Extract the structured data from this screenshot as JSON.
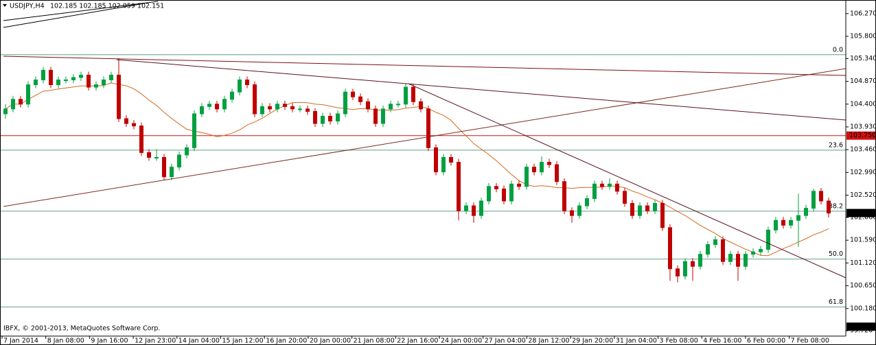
{
  "header": {
    "symbol": "USDJPY,H4",
    "quote": "102.185 102.185 102.059 102.151"
  },
  "footer": "IBFX, © 2001-2013, MetaQuotes Software Corp.",
  "chart_data": {
    "type": "candlestick",
    "categories": [
      "7 Jan 2014",
      "8 Jan 08:00",
      "9 Jan 16:00",
      "12 Jan 23:00",
      "14 Jan 04:00",
      "15 Jan 12:00",
      "16 Jan 20:00",
      "20 Jan 00:00",
      "21 Jan 08:00",
      "22 Jan 16:00",
      "24 Jan 00:00",
      "27 Jan 04:00",
      "28 Jan 12:00",
      "29 Jan 20:00",
      "31 Jan 04:00",
      "3 Feb 08:00",
      "4 Feb 16:00",
      "6 Feb 00:00",
      "7 Feb 08:00"
    ],
    "candles": [
      [
        104.2,
        104.4,
        104.1,
        104.3
      ],
      [
        104.3,
        104.57,
        104.23,
        104.5
      ],
      [
        104.5,
        104.57,
        104.33,
        104.4
      ],
      [
        104.4,
        104.87,
        104.33,
        104.8
      ],
      [
        104.8,
        104.97,
        104.73,
        104.9
      ],
      [
        104.9,
        105.17,
        104.83,
        105.1
      ],
      [
        105.1,
        105.17,
        104.73,
        104.8
      ],
      [
        104.8,
        104.97,
        104.73,
        104.9
      ],
      [
        104.9,
        104.97,
        104.83,
        104.9
      ],
      [
        104.9,
        105.02,
        104.83,
        104.95
      ],
      [
        104.95,
        105.07,
        104.88,
        105.0
      ],
      [
        105.0,
        105.07,
        104.68,
        104.75
      ],
      [
        104.75,
        104.87,
        104.68,
        104.8
      ],
      [
        104.8,
        104.97,
        104.73,
        104.9
      ],
      [
        104.9,
        105.07,
        104.83,
        105.0
      ],
      [
        105.0,
        105.35,
        104.03,
        104.1
      ],
      [
        104.1,
        104.17,
        103.93,
        104.0
      ],
      [
        104.0,
        104.07,
        103.88,
        103.95
      ],
      [
        103.95,
        104.02,
        103.33,
        103.4
      ],
      [
        103.4,
        103.47,
        103.23,
        103.3
      ],
      [
        103.3,
        103.47,
        103.23,
        103.3
      ],
      [
        103.3,
        103.37,
        102.83,
        102.9
      ],
      [
        102.9,
        103.17,
        102.83,
        103.1
      ],
      [
        103.1,
        103.42,
        103.03,
        103.35
      ],
      [
        103.35,
        103.57,
        103.28,
        103.5
      ],
      [
        103.5,
        104.27,
        103.43,
        104.2
      ],
      [
        104.2,
        104.42,
        104.13,
        104.35
      ],
      [
        104.35,
        104.47,
        104.28,
        104.4
      ],
      [
        104.4,
        104.47,
        104.23,
        104.3
      ],
      [
        104.3,
        104.57,
        104.23,
        104.5
      ],
      [
        104.5,
        104.72,
        104.43,
        104.65
      ],
      [
        104.65,
        104.97,
        104.58,
        104.9
      ],
      [
        104.9,
        104.97,
        104.73,
        104.8
      ],
      [
        104.8,
        104.87,
        104.13,
        104.2
      ],
      [
        104.2,
        104.42,
        104.13,
        104.35
      ],
      [
        104.35,
        104.42,
        104.23,
        104.3
      ],
      [
        104.3,
        104.47,
        104.23,
        104.4
      ],
      [
        104.4,
        104.47,
        104.28,
        104.35
      ],
      [
        104.35,
        104.42,
        104.23,
        104.3
      ],
      [
        104.3,
        104.37,
        104.23,
        104.3
      ],
      [
        104.3,
        104.37,
        104.18,
        104.25
      ],
      [
        104.25,
        104.32,
        103.93,
        104.0
      ],
      [
        104.0,
        104.22,
        103.93,
        104.15
      ],
      [
        104.15,
        104.22,
        103.98,
        104.05
      ],
      [
        104.05,
        104.27,
        103.98,
        104.2
      ],
      [
        104.2,
        104.72,
        104.13,
        104.65
      ],
      [
        104.65,
        104.72,
        104.48,
        104.55
      ],
      [
        104.55,
        104.62,
        104.38,
        104.45
      ],
      [
        104.45,
        104.52,
        104.23,
        104.3
      ],
      [
        104.3,
        104.37,
        103.93,
        104.0
      ],
      [
        104.0,
        104.37,
        103.93,
        104.3
      ],
      [
        104.3,
        104.47,
        104.23,
        104.4
      ],
      [
        104.4,
        104.47,
        104.33,
        104.4
      ],
      [
        104.4,
        104.82,
        104.33,
        104.75
      ],
      [
        104.75,
        104.82,
        104.38,
        104.45
      ],
      [
        104.45,
        104.52,
        104.23,
        104.3
      ],
      [
        104.3,
        104.37,
        103.43,
        103.5
      ],
      [
        103.5,
        103.57,
        102.93,
        103.0
      ],
      [
        103.0,
        103.37,
        102.93,
        103.3
      ],
      [
        103.3,
        103.37,
        103.13,
        103.2
      ],
      [
        103.2,
        103.27,
        102.0,
        102.2
      ],
      [
        102.2,
        102.37,
        102.13,
        102.3
      ],
      [
        102.3,
        102.37,
        101.95,
        102.1
      ],
      [
        102.1,
        102.47,
        102.03,
        102.4
      ],
      [
        102.4,
        102.77,
        102.33,
        102.7
      ],
      [
        102.7,
        102.77,
        102.58,
        102.65
      ],
      [
        102.65,
        102.72,
        102.33,
        102.4
      ],
      [
        102.4,
        102.82,
        102.33,
        102.75
      ],
      [
        102.75,
        102.82,
        102.63,
        102.7
      ],
      [
        102.7,
        103.17,
        102.63,
        103.1
      ],
      [
        103.1,
        103.17,
        102.93,
        103.0
      ],
      [
        103.0,
        103.32,
        102.93,
        103.2
      ],
      [
        103.2,
        103.27,
        103.08,
        103.15
      ],
      [
        103.15,
        103.22,
        102.73,
        102.8
      ],
      [
        102.8,
        102.87,
        102.13,
        102.2
      ],
      [
        102.2,
        102.27,
        101.95,
        102.1
      ],
      [
        102.1,
        102.37,
        102.03,
        102.3
      ],
      [
        102.3,
        102.52,
        102.23,
        102.45
      ],
      [
        102.45,
        102.82,
        102.38,
        102.75
      ],
      [
        102.75,
        102.82,
        102.63,
        102.7
      ],
      [
        102.7,
        102.87,
        102.63,
        102.75
      ],
      [
        102.75,
        102.82,
        102.53,
        102.6
      ],
      [
        102.6,
        102.67,
        102.28,
        102.35
      ],
      [
        102.35,
        102.42,
        102.03,
        102.1
      ],
      [
        102.1,
        102.37,
        102.03,
        102.3
      ],
      [
        102.3,
        102.37,
        102.13,
        102.2
      ],
      [
        102.2,
        102.42,
        102.13,
        102.35
      ],
      [
        102.35,
        102.42,
        101.78,
        101.85
      ],
      [
        101.85,
        101.92,
        100.75,
        101.0
      ],
      [
        101.0,
        101.07,
        100.72,
        100.85
      ],
      [
        100.85,
        101.22,
        100.78,
        101.15
      ],
      [
        101.15,
        101.22,
        100.75,
        101.05
      ],
      [
        101.05,
        101.37,
        100.98,
        101.3
      ],
      [
        101.3,
        101.57,
        101.23,
        101.5
      ],
      [
        101.5,
        101.67,
        101.43,
        101.6
      ],
      [
        101.6,
        101.67,
        101.08,
        101.15
      ],
      [
        101.15,
        101.37,
        101.08,
        101.3
      ],
      [
        101.3,
        101.37,
        100.75,
        101.05
      ],
      [
        101.05,
        101.37,
        100.98,
        101.3
      ],
      [
        101.3,
        101.42,
        101.23,
        101.35
      ],
      [
        101.35,
        101.47,
        101.28,
        101.4
      ],
      [
        101.4,
        101.87,
        101.33,
        101.8
      ],
      [
        101.8,
        102.07,
        101.73,
        102.0
      ],
      [
        102.0,
        102.07,
        101.83,
        101.9
      ],
      [
        101.9,
        102.07,
        101.83,
        102.0
      ],
      [
        102.0,
        102.55,
        101.45,
        102.1
      ],
      [
        102.1,
        102.32,
        102.03,
        102.25
      ],
      [
        102.25,
        102.65,
        102.18,
        102.6
      ],
      [
        102.6,
        102.67,
        102.33,
        102.4
      ],
      [
        102.4,
        102.47,
        102.06,
        102.15
      ]
    ],
    "ylim": [
      99.61,
      106.55
    ],
    "yticks": [
      {
        "value": 106.27,
        "label": "106.270"
      },
      {
        "value": 105.8,
        "label": "105.800"
      },
      {
        "value": 105.34,
        "label": "105.340"
      },
      {
        "value": 104.87,
        "label": "104.870"
      },
      {
        "value": 104.4,
        "label": "104.400"
      },
      {
        "value": 103.93,
        "label": "103.930"
      },
      {
        "value": 103.46,
        "label": "103.460"
      },
      {
        "value": 102.99,
        "label": "102.990"
      },
      {
        "value": 102.52,
        "label": "102.520"
      },
      {
        "value": 102.06,
        "label": "102.060"
      },
      {
        "value": 101.59,
        "label": "101.590"
      },
      {
        "value": 101.12,
        "label": "101.120"
      },
      {
        "value": 100.65,
        "label": "100.650"
      },
      {
        "value": 100.18,
        "label": "100.180"
      },
      {
        "value": 99.72,
        "label": "99.720"
      }
    ],
    "levels": [
      {
        "value": 105.42,
        "label": "0.0"
      },
      {
        "value": 103.45,
        "label": "23.6"
      },
      {
        "value": 102.19,
        "label": "38.2"
      },
      {
        "value": 101.2,
        "label": "50.0"
      },
      {
        "value": 100.21,
        "label": "61.8"
      }
    ],
    "resistance": {
      "value": 103.75,
      "label": "103.750"
    },
    "last_price": {
      "value": 102.151,
      "label": "102.151"
    },
    "bottom_price": {
      "value": 99.804,
      "label": "99.804"
    },
    "bull_color": "#00a040",
    "bear_color": "#c00000",
    "level_color": "#5f9f86",
    "resistance_color": "#d01010",
    "ma_color": "#d2691e"
  }
}
